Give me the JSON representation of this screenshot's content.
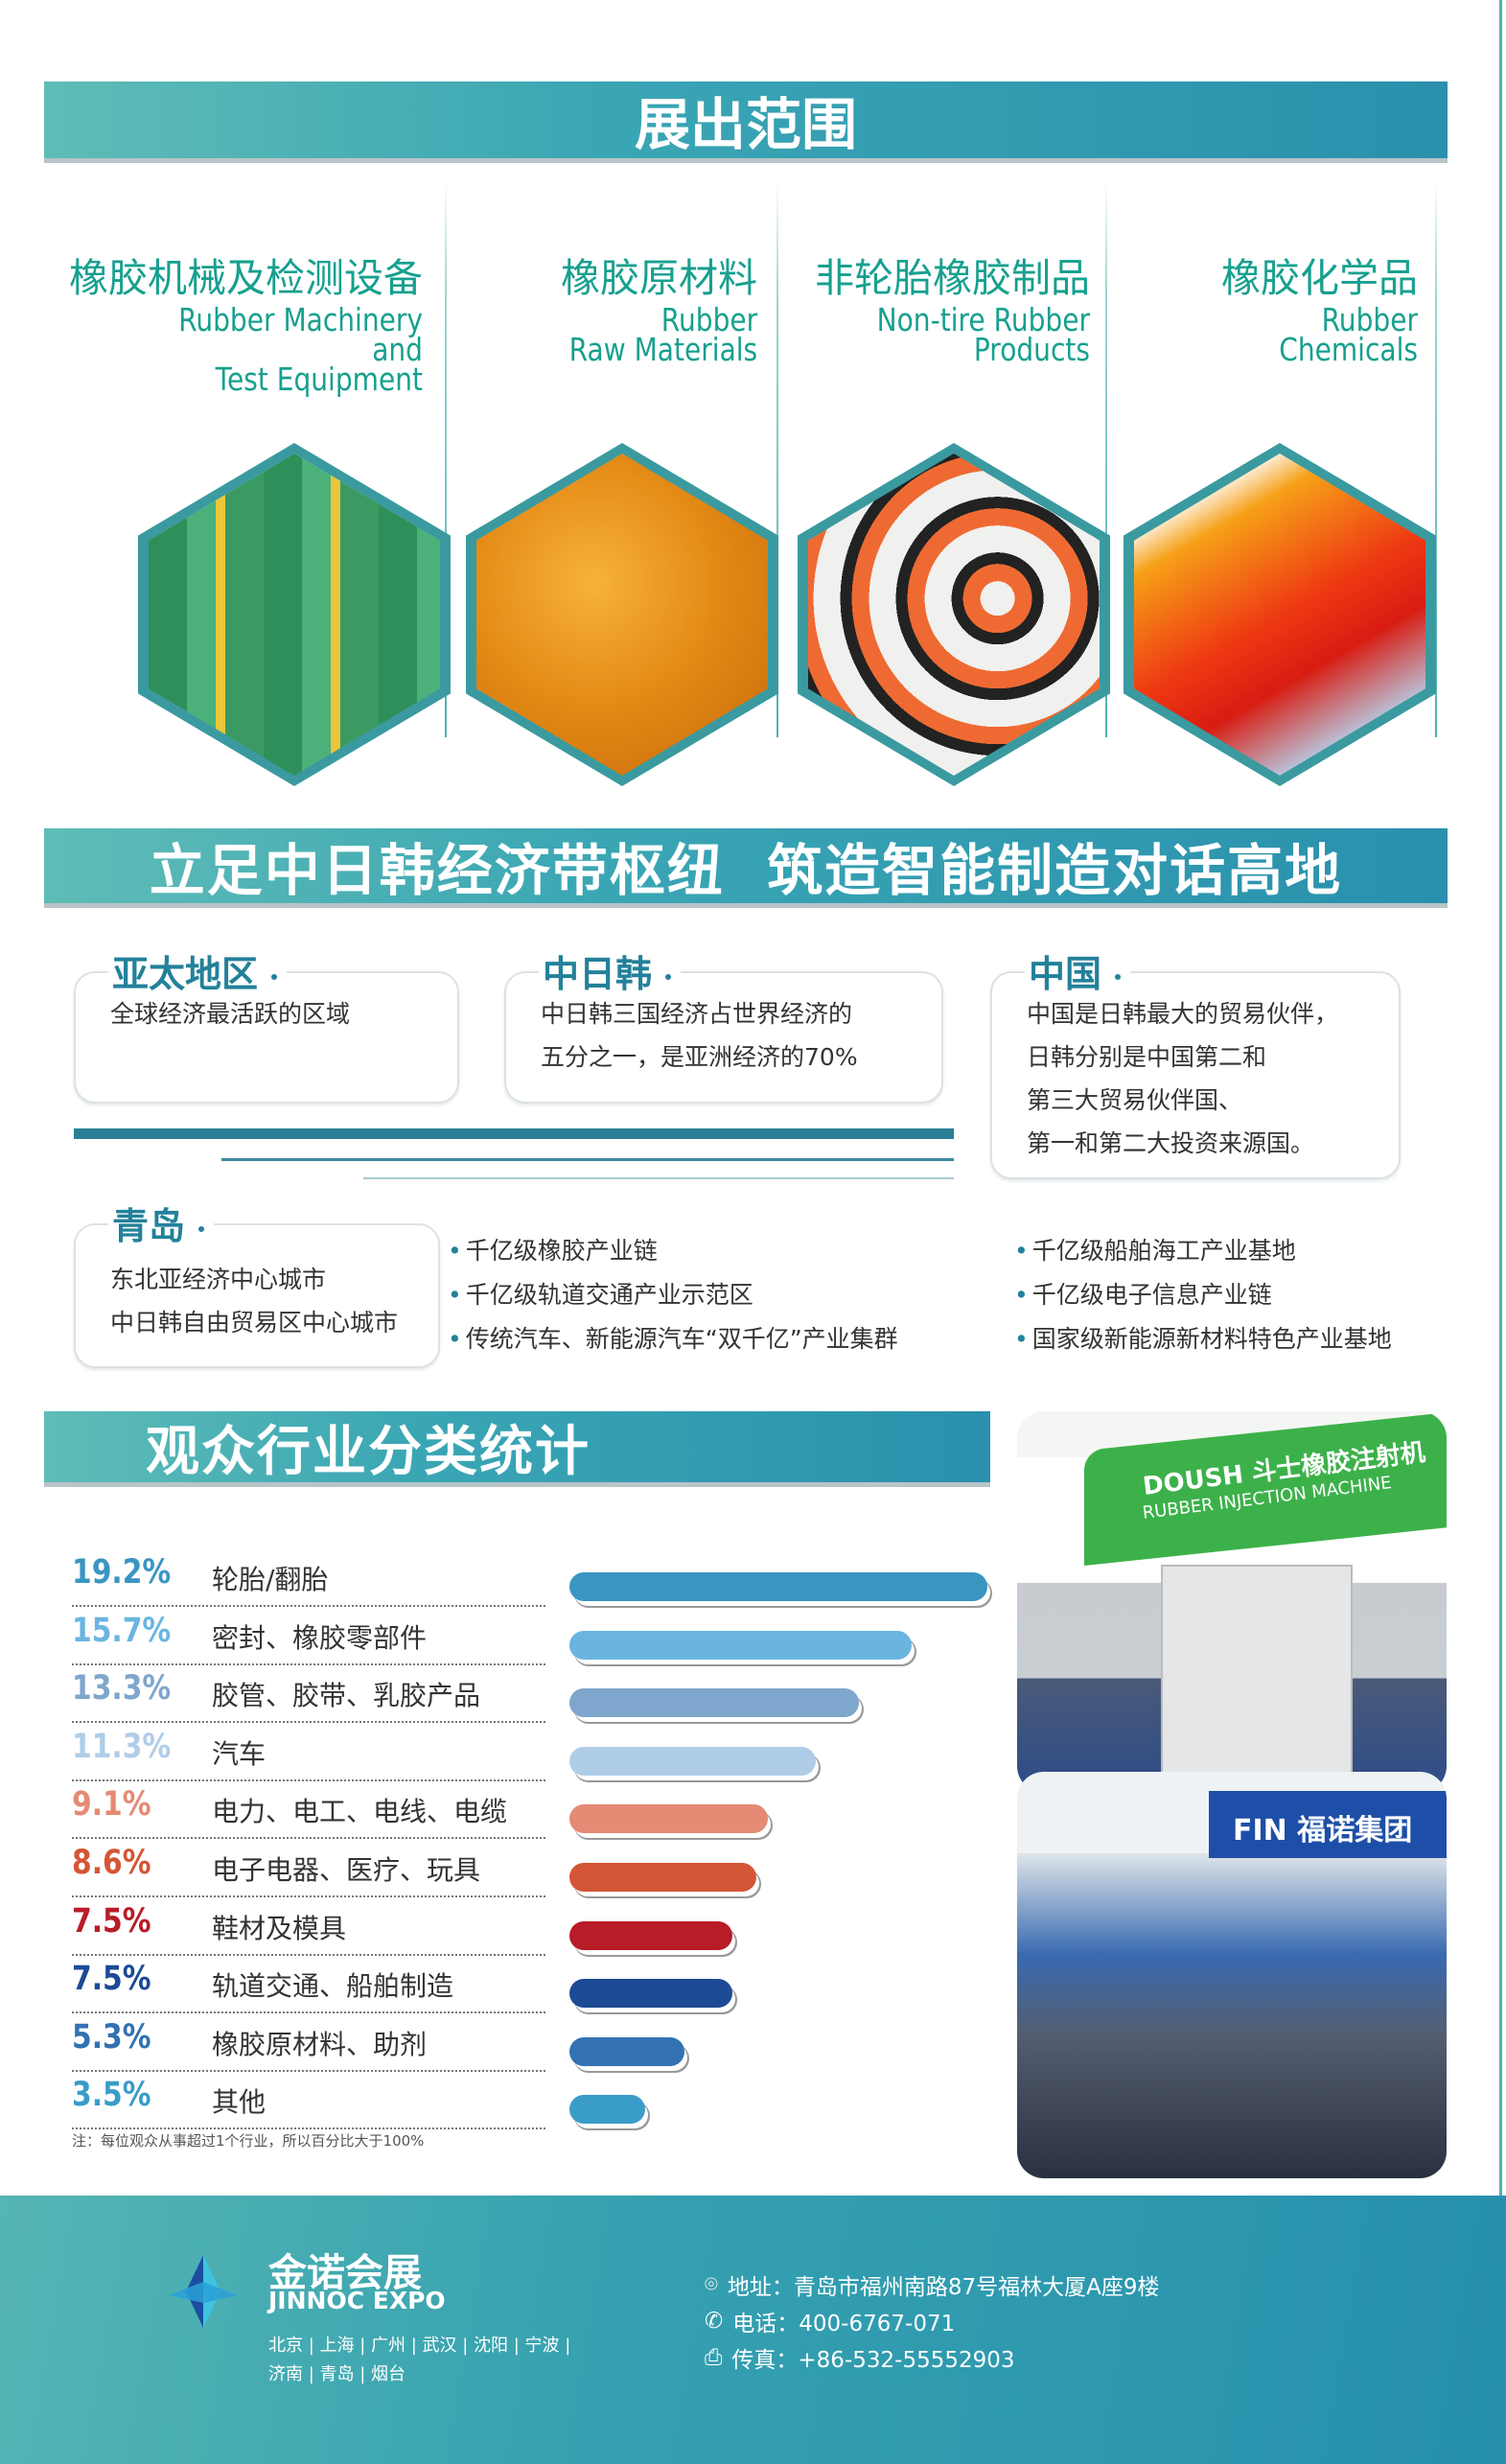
{
  "section1": {
    "title": "展出范围",
    "categories": [
      {
        "zh": "橡胶机械及检测设备",
        "en": "Rubber Machinery\nand\nTest Equipment"
      },
      {
        "zh": "橡胶原材料",
        "en": "Rubber\nRaw Materials"
      },
      {
        "zh": "非轮胎橡胶制品",
        "en": "Non-tire Rubber\nProducts"
      },
      {
        "zh": "橡胶化学品",
        "en": "Rubber\nChemicals"
      }
    ]
  },
  "section2": {
    "title": "立足中日韩经济带枢纽  筑造智能制造对话高地",
    "boxes": [
      {
        "heading": "亚太地区",
        "lines": [
          "全球经济最活跃的区域"
        ]
      },
      {
        "heading": "中日韩",
        "lines": [
          "中日韩三国经济占世界经济的",
          "五分之一，是亚洲经济的70%"
        ]
      },
      {
        "heading": "中国",
        "lines": [
          "中国是日韩最大的贸易伙伴，",
          "日韩分别是中国第二和",
          "第三大贸易伙伴国、",
          "第一和第二大投资来源国。"
        ]
      },
      {
        "heading": "青岛",
        "lines": [
          "东北亚经济中心城市",
          "中日韩自由贸易区中心城市"
        ]
      }
    ],
    "bullets_left": [
      "千亿级橡胶产业链",
      "千亿级轨道交通产业示范区",
      "传统汽车、新能源汽车“双千亿”产业集群"
    ],
    "bullets_right": [
      "千亿级船舶海工产业基地",
      "千亿级电子信息产业链",
      "国家级新能源新材料特色产业基地"
    ]
  },
  "section3": {
    "title": "观众行业分类统计",
    "note": "注：每位观众从事超过1个行业，所以百分比大于100%"
  },
  "chart_data": {
    "type": "bar",
    "orientation": "horizontal",
    "categories": [
      "轮胎/翻胎",
      "密封、橡胶零部件",
      "胶管、胶带、乳胶产品",
      "汽车",
      "电力、电工、电线、电缆",
      "电子电器、医疗、玩具",
      "鞋材及模具",
      "轨道交通、船舶制造",
      "橡胶原材料、助剂",
      "其他"
    ],
    "values": [
      19.2,
      15.7,
      13.3,
      11.3,
      9.1,
      8.6,
      7.5,
      7.5,
      5.3,
      3.5
    ],
    "labels": [
      "19.2%",
      "15.7%",
      "13.3%",
      "11.3%",
      "9.1%",
      "8.6%",
      "7.5%",
      "7.5%",
      "5.3%",
      "3.5%"
    ],
    "colors": [
      "#3a95c2",
      "#6ab5e0",
      "#7fa6cc",
      "#b0cde8",
      "#e48a75",
      "#d45535",
      "#b81c26",
      "#1c4a94",
      "#3272b2",
      "#3a9cc8"
    ]
  },
  "photos": {
    "sign1": "DOUSH 斗士橡胶注射机",
    "sign1_en": "RUBBER INJECTION MACHINE",
    "sign2": "FIN 福诺集团"
  },
  "footer": {
    "logo_zh": "金诺会展",
    "logo_en": "JINNOC EXPO",
    "cities_line1": "北京 | 上海 | 广州 | 武汉 | 沈阳 | 宁波 |",
    "cities_line2": "济南 | 青岛 | 烟台",
    "address": "地址：青岛市福州南路87号福林大厦A座9楼",
    "phone": "电话：400-6767-071",
    "fax": "传真：+86-532-55552903"
  }
}
